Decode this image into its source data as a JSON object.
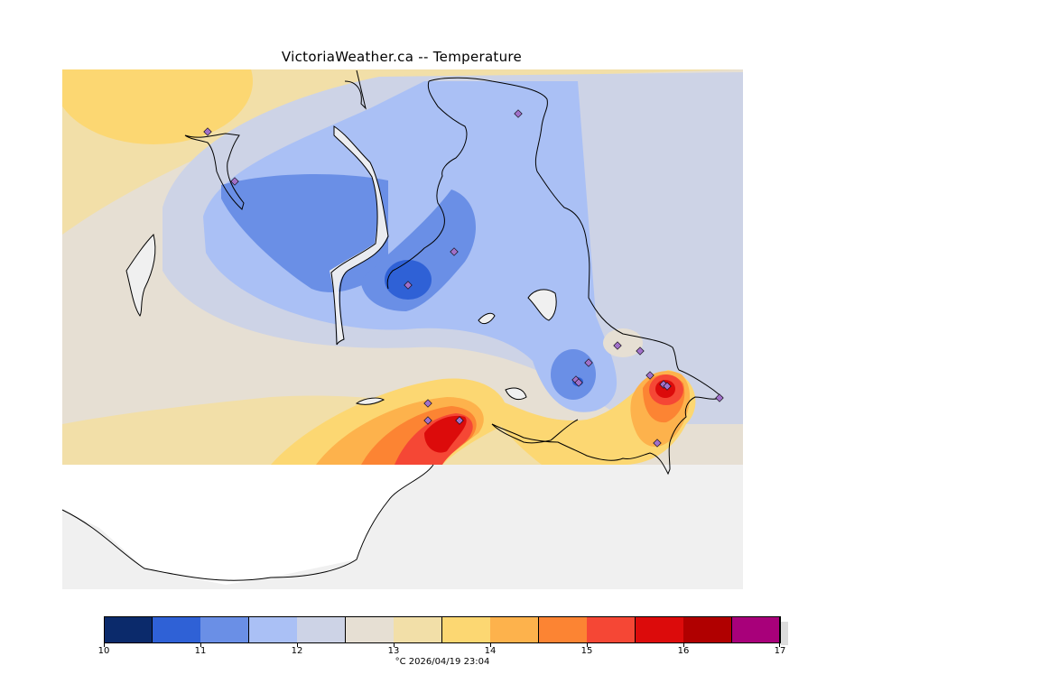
{
  "title": "VictoriaWeather.ca -- Temperature",
  "footer": "°C  2026/04/19 23:04",
  "legend": {
    "colors": [
      "#0b2a6b",
      "#2f61d6",
      "#6a8fe6",
      "#aac0f5",
      "#cdd3e6",
      "#e6dfd3",
      "#f2dfa8",
      "#fcd772",
      "#fdb24c",
      "#fc8433",
      "#f54735",
      "#dc0b0b",
      "#b00000",
      "#a8007a"
    ],
    "ticks": [
      "10",
      "11",
      "12",
      "13",
      "14",
      "15",
      "16",
      "17"
    ]
  },
  "stations_count": 17,
  "colors": {
    "water": "#f0f0f0",
    "land_outside": "#ffffff",
    "coastline": "#000000",
    "station": "#a070c8"
  }
}
